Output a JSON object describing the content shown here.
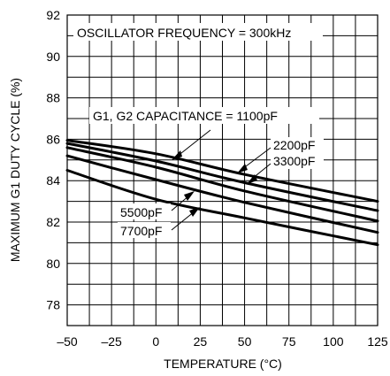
{
  "chart_data": {
    "type": "line",
    "title": "",
    "xlabel": "TEMPERATURE (°C)",
    "ylabel": "MAXIMUM G1 DUTY CYCLE (%)",
    "xlim": [
      -50,
      125
    ],
    "ylim": [
      77,
      92
    ],
    "x_ticks": [
      -50,
      -25,
      0,
      25,
      50,
      75,
      100,
      125
    ],
    "x_tick_labels": [
      "–50",
      "–25",
      "0",
      "25",
      "50",
      "75",
      "100",
      "125"
    ],
    "y_ticks": [
      78,
      80,
      82,
      84,
      86,
      88,
      90,
      92
    ],
    "y_tick_labels": [
      "78",
      "80",
      "82",
      "84",
      "86",
      "88",
      "90",
      "92"
    ],
    "grid": true,
    "annotations": {
      "frequency": "OSCILLATOR FREQUENCY = 300kHz",
      "cap_1100": "G1, G2 CAPACITANCE = 1100pF",
      "cap_2200": "2200pF",
      "cap_3300": "3300pF",
      "cap_5500": "5500pF",
      "cap_7700": "7700pF"
    },
    "series": [
      {
        "name": "1100pF",
        "x": [
          -50,
          0,
          50,
          125
        ],
        "y": [
          85.95,
          85.3,
          84.3,
          83.0
        ]
      },
      {
        "name": "2200pF",
        "x": [
          -50,
          0,
          50,
          125
        ],
        "y": [
          85.8,
          84.95,
          83.9,
          82.55
        ]
      },
      {
        "name": "3300pF",
        "x": [
          -50,
          0,
          50,
          125
        ],
        "y": [
          85.6,
          84.65,
          83.5,
          82.05
        ]
      },
      {
        "name": "5500pF",
        "x": [
          -50,
          0,
          50,
          125
        ],
        "y": [
          85.2,
          84.05,
          82.95,
          81.5
        ]
      },
      {
        "name": "7700pF",
        "x": [
          -50,
          0,
          50,
          125
        ],
        "y": [
          84.5,
          83.1,
          82.2,
          80.9
        ]
      }
    ]
  }
}
